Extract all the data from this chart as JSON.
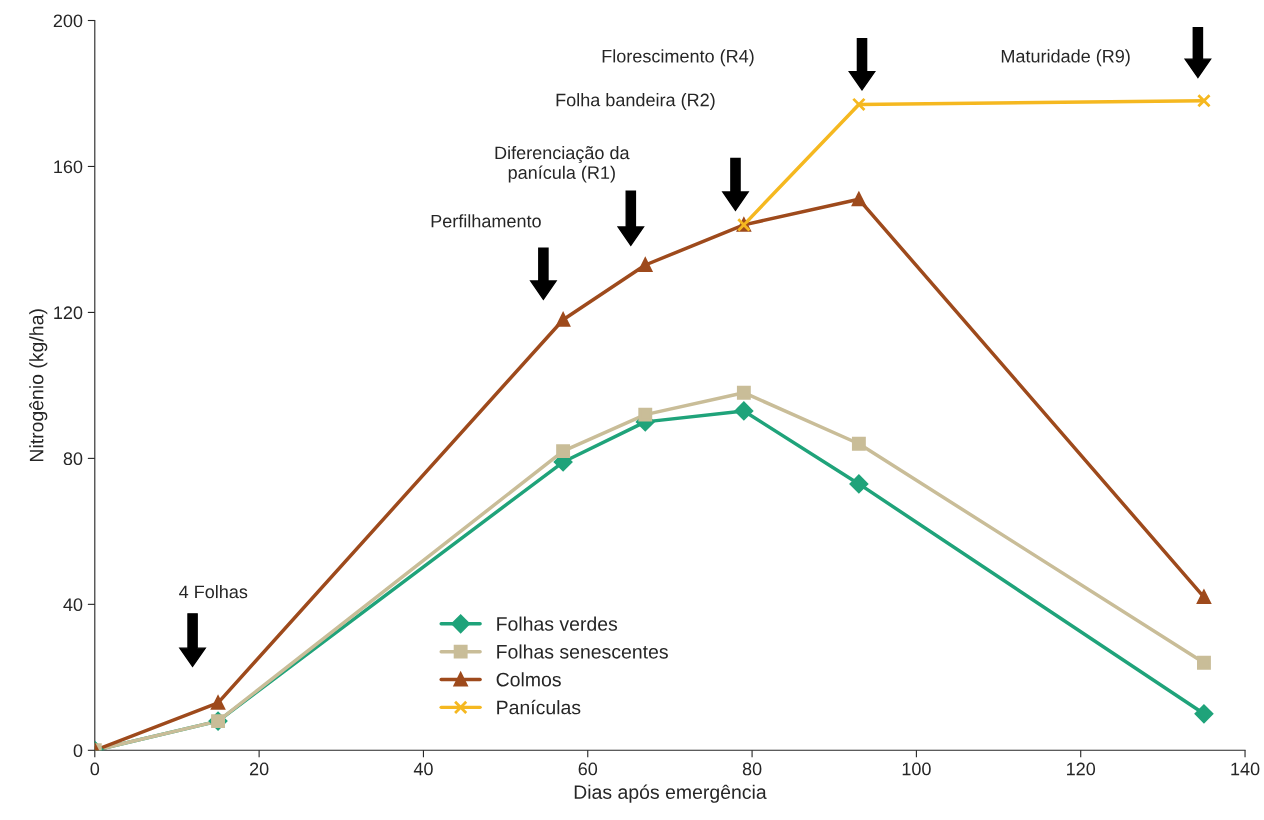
{
  "chart_data": {
    "type": "line",
    "xlabel": "Dias após emergência",
    "ylabel": "Nitrogênio (kg/ha)",
    "xlim": [
      0,
      140
    ],
    "xticks": [
      0,
      20,
      40,
      60,
      80,
      100,
      120,
      140
    ],
    "ylim": [
      0,
      200
    ],
    "yticks": [
      0,
      40,
      80,
      120,
      160,
      200
    ],
    "grid": false,
    "legend": "bottom",
    "line_style": "solid",
    "series": [
      {
        "name": "Folhas verdes",
        "color": "#1fa37a",
        "marker": "diamond",
        "x": [
          0,
          15,
          57,
          67,
          79,
          93,
          135
        ],
        "values": [
          0,
          8,
          79,
          90,
          93,
          73,
          10
        ]
      },
      {
        "name": "Folhas senescentes",
        "color": "#c9bd98",
        "marker": "square",
        "x": [
          0,
          15,
          57,
          67,
          79,
          93,
          135
        ],
        "values": [
          0,
          8,
          82,
          92,
          98,
          84,
          24
        ]
      },
      {
        "name": "Colmos",
        "color": "#9e4a1c",
        "marker": "triangle",
        "x": [
          0,
          15,
          57,
          67,
          79,
          93,
          135
        ],
        "values": [
          0,
          13,
          118,
          133,
          144,
          151,
          42
        ]
      },
      {
        "name": "Panículas",
        "color": "#f5b820",
        "marker": "cross",
        "x": [
          79,
          93,
          135
        ],
        "values": [
          144,
          177,
          178
        ]
      }
    ],
    "annotations": [
      "4 Folhas",
      "Perfilhamento",
      "Diferenciação da\npanícula (R1)",
      "Folha bandeira (R2)",
      "Florescimento (R4)",
      "Maturidade (R9)"
    ]
  }
}
